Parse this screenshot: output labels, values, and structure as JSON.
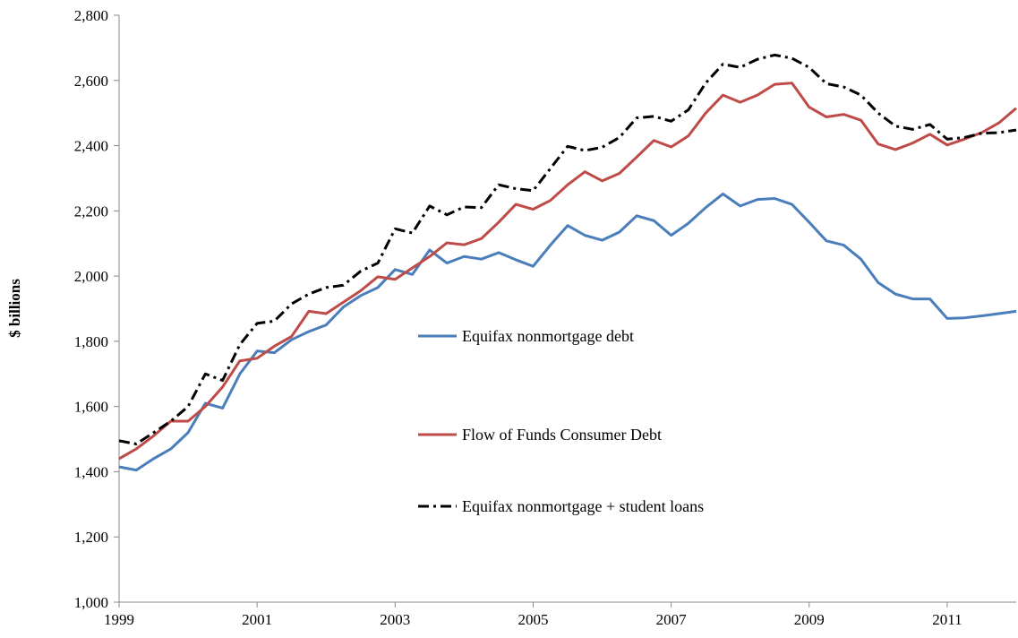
{
  "chart_data": {
    "type": "line",
    "ylabel": "$ billions",
    "x": [
      1999,
      1999.25,
      1999.5,
      1999.75,
      2000,
      2000.25,
      2000.5,
      2000.75,
      2001,
      2001.25,
      2001.5,
      2001.75,
      2002,
      2002.25,
      2002.5,
      2002.75,
      2003,
      2003.25,
      2003.5,
      2003.75,
      2004,
      2004.25,
      2004.5,
      2004.75,
      2005,
      2005.25,
      2005.5,
      2005.75,
      2006,
      2006.25,
      2006.5,
      2006.75,
      2007,
      2007.25,
      2007.5,
      2007.75,
      2008,
      2008.25,
      2008.5,
      2008.75,
      2009,
      2009.25,
      2009.5,
      2009.75,
      2010,
      2010.25,
      2010.5,
      2010.75,
      2011,
      2011.25,
      2011.5,
      2011.75,
      2012
    ],
    "series": [
      {
        "name": "Equifax nonmortgage debt",
        "color": "#4a7ebb",
        "dash": "solid",
        "values": [
          1415,
          1405,
          1440,
          1470,
          1520,
          1610,
          1595,
          1700,
          1770,
          1765,
          1805,
          1830,
          1850,
          1905,
          1940,
          1965,
          2020,
          2005,
          2080,
          2040,
          2060,
          2052,
          2072,
          2050,
          2030,
          2095,
          2155,
          2125,
          2110,
          2135,
          2185,
          2170,
          2125,
          2162,
          2210,
          2252,
          2215,
          2235,
          2238,
          2220,
          2165,
          2108,
          2095,
          2052,
          1980,
          1945,
          1930,
          1930,
          1870,
          1872,
          1878,
          1885,
          1892
        ]
      },
      {
        "name": "Flow of Funds Consumer Debt",
        "color": "#be4b48",
        "dash": "solid",
        "values": [
          1440,
          1470,
          1510,
          1555,
          1555,
          1600,
          1660,
          1740,
          1748,
          1785,
          1815,
          1892,
          1885,
          1920,
          1955,
          1998,
          1990,
          2025,
          2060,
          2102,
          2096,
          2115,
          2165,
          2220,
          2205,
          2232,
          2280,
          2320,
          2292,
          2315,
          2365,
          2416,
          2396,
          2430,
          2500,
          2555,
          2533,
          2555,
          2588,
          2592,
          2518,
          2488,
          2496,
          2478,
          2405,
          2388,
          2408,
          2435,
          2402,
          2420,
          2440,
          2470,
          2515
        ]
      },
      {
        "name": "Equifax nonmortgage + student loans",
        "color": "#000000",
        "dash": "dashdot",
        "values": [
          1495,
          1485,
          1520,
          1555,
          1600,
          1700,
          1680,
          1790,
          1855,
          1862,
          1915,
          1945,
          1965,
          1972,
          2015,
          2040,
          2145,
          2132,
          2215,
          2188,
          2212,
          2210,
          2280,
          2268,
          2262,
          2330,
          2398,
          2385,
          2395,
          2425,
          2485,
          2490,
          2475,
          2510,
          2592,
          2650,
          2640,
          2665,
          2678,
          2668,
          2640,
          2590,
          2580,
          2555,
          2500,
          2460,
          2450,
          2465,
          2420,
          2425,
          2438,
          2440,
          2448
        ]
      }
    ],
    "xlim": [
      1999,
      2012
    ],
    "xticks": [
      1999,
      2001,
      2003,
      2005,
      2007,
      2009,
      2011
    ],
    "ylim": [
      1000,
      2800
    ],
    "yticks": [
      {
        "value": 1000,
        "label": "1,000"
      },
      {
        "value": 1200,
        "label": "1,200"
      },
      {
        "value": 1400,
        "label": "1,400"
      },
      {
        "value": 1600,
        "label": "1,600"
      },
      {
        "value": 1800,
        "label": "1,800"
      },
      {
        "value": 2000,
        "label": "2,000"
      },
      {
        "value": 2200,
        "label": "2,200"
      },
      {
        "value": 2400,
        "label": "2,400"
      },
      {
        "value": 2600,
        "label": "2,600"
      },
      {
        "value": 2800,
        "label": "2,800"
      }
    ],
    "grid": false,
    "legend": "center"
  }
}
